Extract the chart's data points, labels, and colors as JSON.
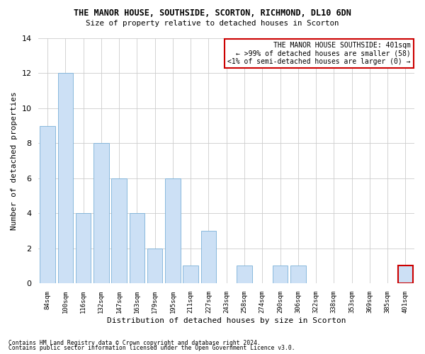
{
  "title": "THE MANOR HOUSE, SOUTHSIDE, SCORTON, RICHMOND, DL10 6DN",
  "subtitle": "Size of property relative to detached houses in Scorton",
  "xlabel": "Distribution of detached houses by size in Scorton",
  "ylabel": "Number of detached properties",
  "categories": [
    "84sqm",
    "100sqm",
    "116sqm",
    "132sqm",
    "147sqm",
    "163sqm",
    "179sqm",
    "195sqm",
    "211sqm",
    "227sqm",
    "243sqm",
    "258sqm",
    "274sqm",
    "290sqm",
    "306sqm",
    "322sqm",
    "338sqm",
    "353sqm",
    "369sqm",
    "385sqm",
    "401sqm"
  ],
  "values": [
    9,
    12,
    4,
    8,
    6,
    4,
    2,
    6,
    1,
    3,
    0,
    1,
    0,
    1,
    1,
    0,
    0,
    0,
    0,
    0,
    1
  ],
  "bar_color": "#cce0f5",
  "bar_edge_color": "#7ab0d8",
  "highlight_index": 20,
  "highlight_bar_edge_color": "#cc0000",
  "ylim": [
    0,
    14
  ],
  "yticks": [
    0,
    2,
    4,
    6,
    8,
    10,
    12,
    14
  ],
  "annotation_title": "THE MANOR HOUSE SOUTHSIDE: 401sqm",
  "annotation_line1": "← >99% of detached houses are smaller (58)",
  "annotation_line2": "<1% of semi-detached houses are larger (0) →",
  "annotation_box_color": "#ffffff",
  "annotation_box_edge_color": "#cc0000",
  "footer1": "Contains HM Land Registry data © Crown copyright and database right 2024.",
  "footer2": "Contains public sector information licensed under the Open Government Licence v3.0.",
  "background_color": "#ffffff",
  "grid_color": "#cccccc"
}
